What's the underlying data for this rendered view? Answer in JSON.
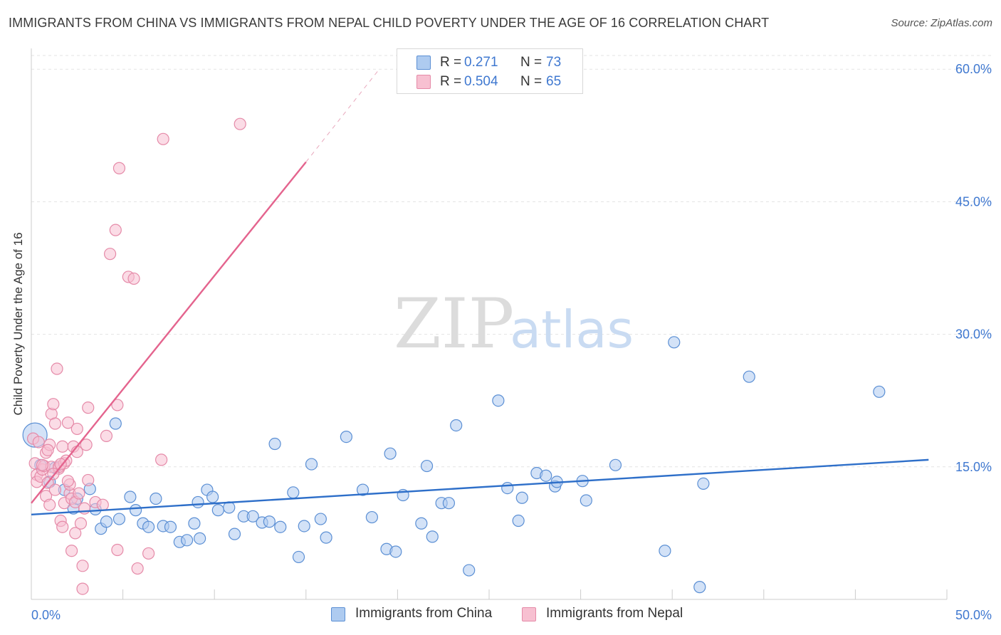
{
  "title": "IMMIGRANTS FROM CHINA VS IMMIGRANTS FROM NEPAL CHILD POVERTY UNDER THE AGE OF 16 CORRELATION CHART",
  "source": "Source: ZipAtlas.com",
  "watermark": {
    "zip": "ZIP",
    "atlas": "atlas"
  },
  "colors": {
    "china_fill": "#aecbf0",
    "china_stroke": "#5b8fd4",
    "china_line": "#2e6fc9",
    "nepal_fill": "#f7c0d1",
    "nepal_stroke": "#e58aa8",
    "nepal_line": "#e4648e",
    "tick_label": "#3f78d0",
    "grid": "#e3e3e3"
  },
  "legend": {
    "china": {
      "r_label": "R =",
      "r_value": "0.271",
      "n_label": "N =",
      "n_value": "73"
    },
    "nepal": {
      "r_label": "R =",
      "r_value": "0.504",
      "n_label": "N =",
      "n_value": "65"
    }
  },
  "chart_data": {
    "type": "scatter",
    "title": "IMMIGRANTS FROM CHINA VS IMMIGRANTS FROM NEPAL CHILD POVERTY UNDER THE AGE OF 16 CORRELATION CHART",
    "xlabel": "",
    "ylabel": "Child Poverty Under the Age of 16",
    "xlim": [
      0,
      50
    ],
    "ylim": [
      0,
      63
    ],
    "x_tick_labels": [
      "0.0%",
      "50.0%"
    ],
    "y_ticks": [
      15,
      30,
      45,
      60
    ],
    "y_tick_labels": [
      "15.0%",
      "30.0%",
      "45.0%",
      "60.0%"
    ],
    "grid": true,
    "legend_position": "bottom-center",
    "series": [
      {
        "name": "Immigrants from China",
        "trend": {
          "x": [
            0,
            49
          ],
          "y": [
            9.6,
            15.8
          ]
        },
        "points": [
          [
            0.2,
            18.6
          ],
          [
            0.5,
            15.2
          ],
          [
            1.0,
            13.3
          ],
          [
            1.3,
            14.9
          ],
          [
            1.8,
            12.4
          ],
          [
            2.3,
            10.3
          ],
          [
            2.5,
            11.4
          ],
          [
            3.2,
            12.5
          ],
          [
            3.5,
            10.2
          ],
          [
            3.8,
            8.0
          ],
          [
            4.1,
            8.8
          ],
          [
            4.6,
            19.9
          ],
          [
            4.8,
            9.1
          ],
          [
            5.4,
            11.6
          ],
          [
            5.7,
            10.1
          ],
          [
            6.1,
            8.6
          ],
          [
            6.4,
            8.2
          ],
          [
            6.8,
            11.4
          ],
          [
            7.2,
            8.3
          ],
          [
            7.6,
            8.2
          ],
          [
            8.1,
            6.5
          ],
          [
            8.5,
            6.7
          ],
          [
            8.9,
            8.6
          ],
          [
            9.2,
            6.9
          ],
          [
            9.6,
            12.4
          ],
          [
            9.9,
            11.6
          ],
          [
            10.2,
            10.1
          ],
          [
            10.8,
            10.4
          ],
          [
            11.1,
            7.4
          ],
          [
            11.6,
            9.4
          ],
          [
            12.1,
            9.4
          ],
          [
            12.6,
            8.7
          ],
          [
            13.0,
            8.8
          ],
          [
            13.3,
            17.6
          ],
          [
            13.6,
            8.2
          ],
          [
            14.3,
            12.1
          ],
          [
            14.6,
            4.8
          ],
          [
            14.9,
            8.3
          ],
          [
            15.3,
            15.3
          ],
          [
            15.8,
            9.1
          ],
          [
            16.1,
            7.0
          ],
          [
            17.2,
            18.4
          ],
          [
            18.1,
            12.4
          ],
          [
            18.6,
            9.3
          ],
          [
            19.4,
            5.7
          ],
          [
            19.6,
            16.5
          ],
          [
            19.9,
            5.4
          ],
          [
            20.3,
            11.8
          ],
          [
            21.3,
            8.6
          ],
          [
            21.6,
            15.1
          ],
          [
            21.9,
            7.1
          ],
          [
            22.4,
            10.9
          ],
          [
            22.8,
            10.9
          ],
          [
            23.2,
            19.7
          ],
          [
            23.9,
            3.3
          ],
          [
            25.5,
            22.5
          ],
          [
            26.0,
            12.6
          ],
          [
            26.6,
            8.9
          ],
          [
            26.8,
            11.5
          ],
          [
            27.6,
            14.3
          ],
          [
            28.1,
            14.0
          ],
          [
            28.6,
            12.8
          ],
          [
            28.7,
            13.3
          ],
          [
            30.1,
            13.4
          ],
          [
            30.3,
            11.2
          ],
          [
            31.9,
            15.2
          ],
          [
            34.6,
            5.5
          ],
          [
            35.1,
            29.1
          ],
          [
            36.5,
            1.4
          ],
          [
            36.7,
            13.1
          ],
          [
            39.2,
            25.2
          ],
          [
            46.3,
            23.5
          ],
          [
            9.1,
            11.0
          ]
        ]
      },
      {
        "name": "Immigrants from Nepal",
        "trend": {
          "x": [
            0,
            15
          ],
          "y": [
            10.9,
            49.5
          ]
        },
        "trend_dashed": {
          "x": [
            15,
            19
          ],
          "y": [
            49.5,
            60.0
          ]
        },
        "points": [
          [
            0.1,
            18.2
          ],
          [
            0.2,
            15.4
          ],
          [
            0.3,
            14.1
          ],
          [
            0.3,
            13.3
          ],
          [
            0.4,
            17.8
          ],
          [
            0.5,
            13.9
          ],
          [
            0.6,
            14.7
          ],
          [
            0.7,
            15.1
          ],
          [
            0.8,
            11.7
          ],
          [
            0.8,
            16.6
          ],
          [
            0.9,
            13.2
          ],
          [
            1.0,
            17.5
          ],
          [
            1.0,
            10.7
          ],
          [
            1.1,
            15.0
          ],
          [
            1.1,
            21.0
          ],
          [
            1.2,
            22.1
          ],
          [
            1.3,
            19.9
          ],
          [
            1.3,
            12.4
          ],
          [
            1.4,
            26.1
          ],
          [
            1.5,
            14.8
          ],
          [
            1.5,
            15.0
          ],
          [
            1.6,
            8.9
          ],
          [
            1.7,
            8.2
          ],
          [
            1.7,
            17.3
          ],
          [
            1.8,
            15.4
          ],
          [
            1.8,
            10.9
          ],
          [
            1.9,
            15.7
          ],
          [
            2.0,
            20.0
          ],
          [
            2.1,
            12.0
          ],
          [
            2.1,
            13.0
          ],
          [
            2.2,
            11.4
          ],
          [
            2.2,
            5.5
          ],
          [
            2.3,
            17.3
          ],
          [
            2.4,
            7.5
          ],
          [
            2.4,
            11.0
          ],
          [
            2.5,
            19.3
          ],
          [
            2.5,
            16.7
          ],
          [
            2.6,
            12.0
          ],
          [
            2.7,
            8.6
          ],
          [
            2.8,
            3.8
          ],
          [
            2.8,
            1.2
          ],
          [
            2.9,
            10.3
          ],
          [
            3.0,
            17.5
          ],
          [
            3.1,
            13.5
          ],
          [
            3.1,
            21.7
          ],
          [
            3.5,
            11.0
          ],
          [
            3.9,
            10.7
          ],
          [
            4.1,
            18.5
          ],
          [
            4.3,
            39.1
          ],
          [
            4.6,
            41.8
          ],
          [
            4.7,
            22.0
          ],
          [
            4.7,
            5.6
          ],
          [
            4.8,
            48.8
          ],
          [
            5.3,
            36.5
          ],
          [
            5.6,
            36.3
          ],
          [
            5.8,
            3.5
          ],
          [
            6.4,
            5.2
          ],
          [
            7.1,
            15.8
          ],
          [
            7.2,
            52.1
          ],
          [
            11.4,
            53.8
          ],
          [
            0.9,
            16.9
          ],
          [
            1.6,
            15.3
          ],
          [
            2.0,
            13.4
          ],
          [
            0.6,
            15.2
          ],
          [
            1.2,
            14.2
          ]
        ]
      }
    ]
  }
}
